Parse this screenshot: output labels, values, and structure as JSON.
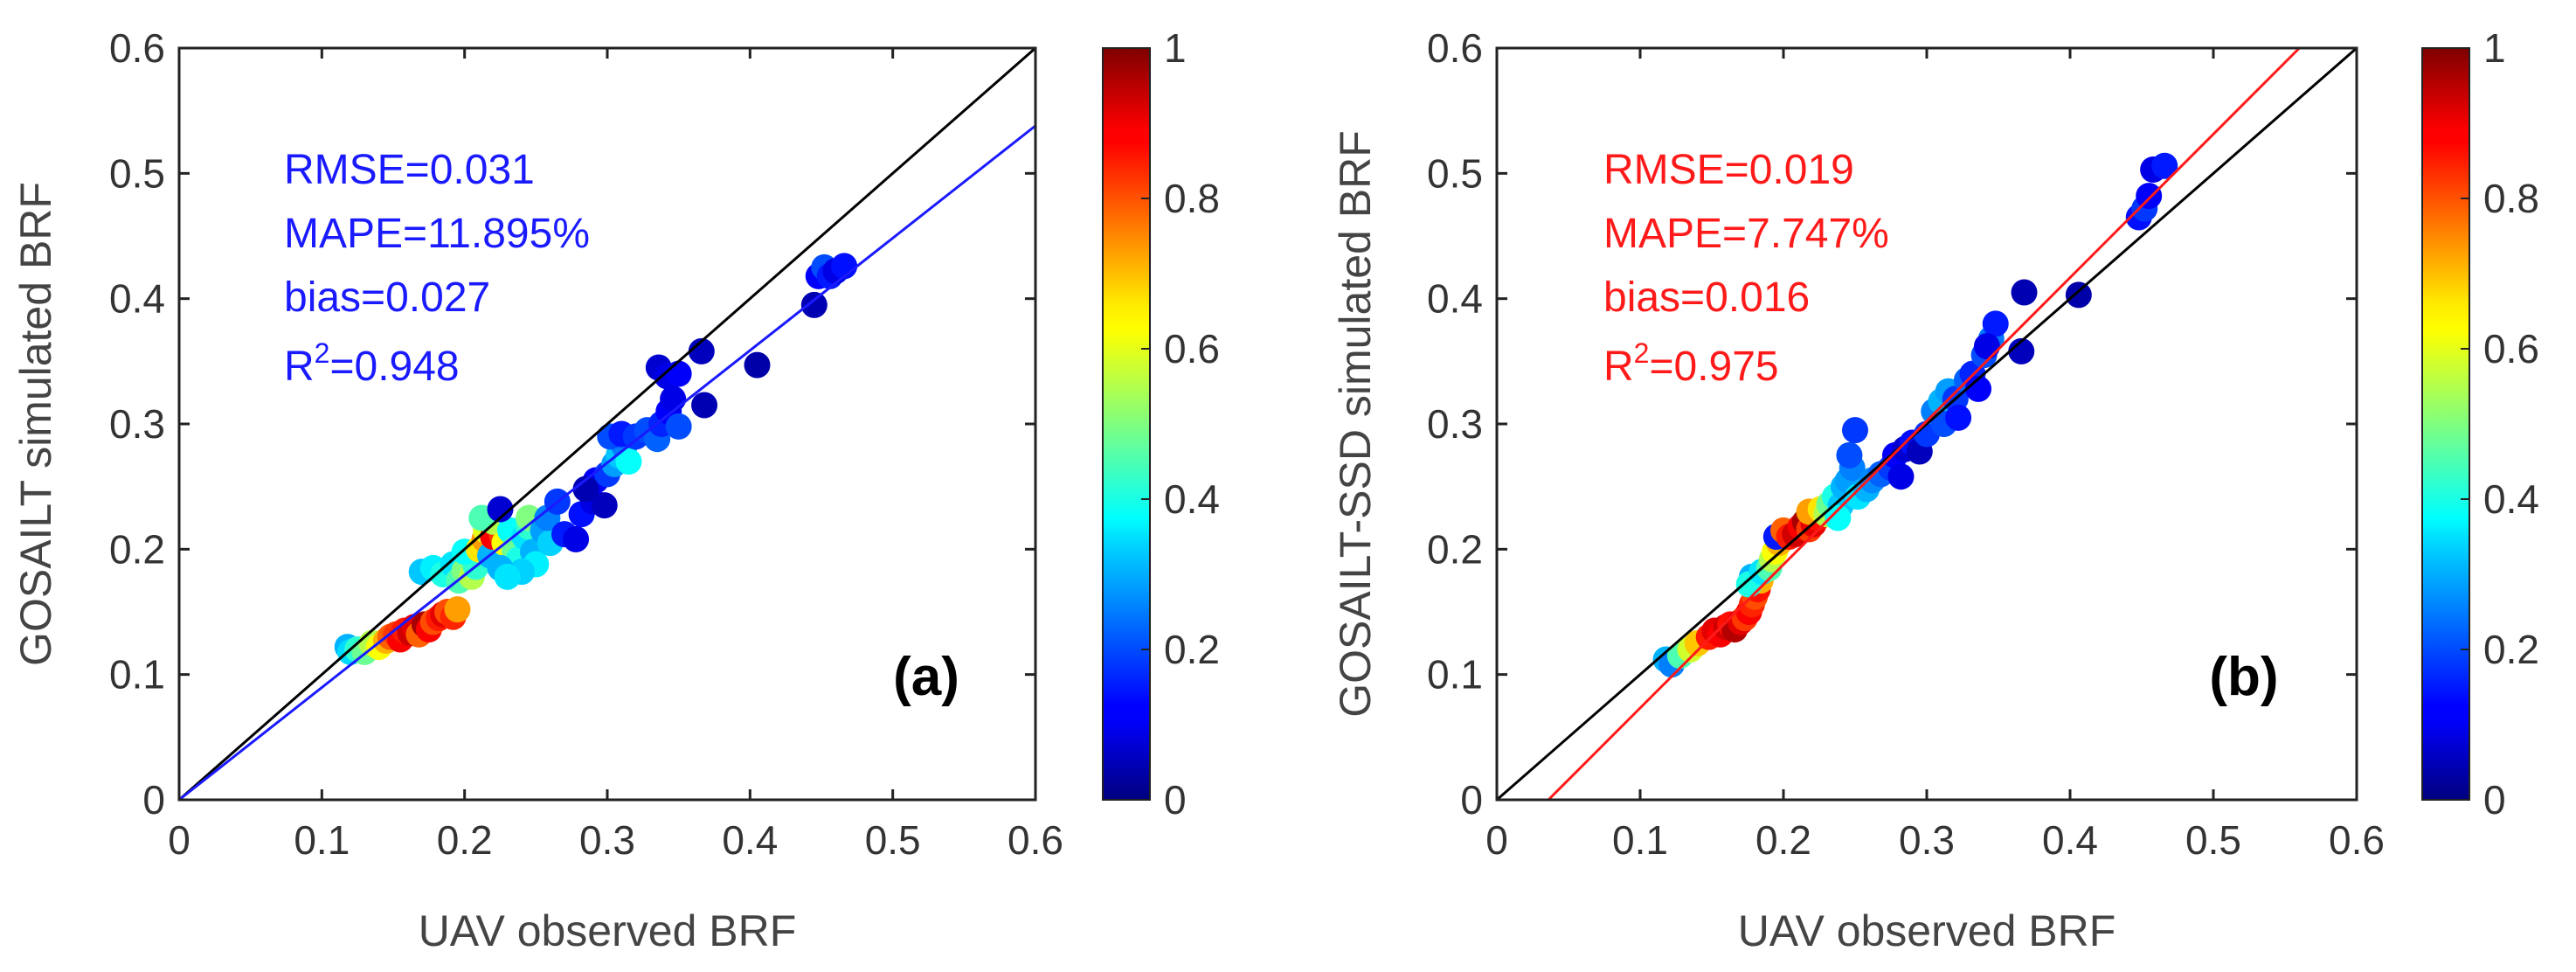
{
  "chart_data": [
    {
      "type": "scatter",
      "panel_label": "(a)",
      "xlabel": "UAV observed BRF",
      "ylabel": "GOSAILT simulated BRF",
      "xlim": [
        0,
        0.6
      ],
      "ylim": [
        0,
        0.6
      ],
      "xticks": [
        "0",
        "0.1",
        "0.2",
        "0.3",
        "0.4",
        "0.5",
        "0.6"
      ],
      "yticks": [
        "0",
        "0.1",
        "0.2",
        "0.3",
        "0.4",
        "0.5",
        "0.6"
      ],
      "stats": [
        "RMSE=0.031",
        "MAPE=11.895%",
        "bias=0.027"
      ],
      "r2_base": "R",
      "r2_sup": "2",
      "r2_value": "=0.948",
      "stats_color": "#1a1aff",
      "one_to_one_line": {
        "x": [
          0,
          0.6
        ],
        "y": [
          0,
          0.6
        ],
        "color": "#000000"
      },
      "fit_line": {
        "x": [
          0,
          0.6
        ],
        "y": [
          0,
          0.538
        ],
        "color": "#1a1aff"
      },
      "colorbar": {
        "min": 0,
        "max": 1,
        "ticks": [
          "0",
          "0.2",
          "0.4",
          "0.6",
          "0.8",
          "1"
        ],
        "colormap": "jet"
      },
      "points": [
        {
          "x": 0.118,
          "y": 0.122,
          "c": 0.3
        },
        {
          "x": 0.12,
          "y": 0.118,
          "c": 0.34
        },
        {
          "x": 0.125,
          "y": 0.12,
          "c": 0.42
        },
        {
          "x": 0.13,
          "y": 0.118,
          "c": 0.48
        },
        {
          "x": 0.135,
          "y": 0.125,
          "c": 0.55
        },
        {
          "x": 0.14,
          "y": 0.122,
          "c": 0.62
        },
        {
          "x": 0.145,
          "y": 0.127,
          "c": 0.7
        },
        {
          "x": 0.148,
          "y": 0.13,
          "c": 0.78
        },
        {
          "x": 0.152,
          "y": 0.132,
          "c": 0.82
        },
        {
          "x": 0.155,
          "y": 0.128,
          "c": 0.88
        },
        {
          "x": 0.158,
          "y": 0.135,
          "c": 0.85
        },
        {
          "x": 0.162,
          "y": 0.133,
          "c": 0.92
        },
        {
          "x": 0.165,
          "y": 0.138,
          "c": 0.9
        },
        {
          "x": 0.168,
          "y": 0.132,
          "c": 0.78
        },
        {
          "x": 0.172,
          "y": 0.14,
          "c": 0.96
        },
        {
          "x": 0.175,
          "y": 0.136,
          "c": 0.88
        },
        {
          "x": 0.178,
          "y": 0.142,
          "c": 0.8
        },
        {
          "x": 0.182,
          "y": 0.145,
          "c": 0.85
        },
        {
          "x": 0.185,
          "y": 0.148,
          "c": 0.9
        },
        {
          "x": 0.188,
          "y": 0.15,
          "c": 0.8
        },
        {
          "x": 0.192,
          "y": 0.146,
          "c": 0.84
        },
        {
          "x": 0.195,
          "y": 0.152,
          "c": 0.72
        },
        {
          "x": 0.17,
          "y": 0.182,
          "c": 0.32
        },
        {
          "x": 0.178,
          "y": 0.185,
          "c": 0.36
        },
        {
          "x": 0.185,
          "y": 0.18,
          "c": 0.4
        },
        {
          "x": 0.192,
          "y": 0.188,
          "c": 0.35
        },
        {
          "x": 0.196,
          "y": 0.175,
          "c": 0.45
        },
        {
          "x": 0.2,
          "y": 0.183,
          "c": 0.5
        },
        {
          "x": 0.205,
          "y": 0.178,
          "c": 0.55
        },
        {
          "x": 0.208,
          "y": 0.186,
          "c": 0.42
        },
        {
          "x": 0.2,
          "y": 0.198,
          "c": 0.38
        },
        {
          "x": 0.21,
          "y": 0.2,
          "c": 0.65
        },
        {
          "x": 0.214,
          "y": 0.208,
          "c": 0.72
        },
        {
          "x": 0.218,
          "y": 0.195,
          "c": 0.3
        },
        {
          "x": 0.215,
          "y": 0.215,
          "c": 0.6
        },
        {
          "x": 0.22,
          "y": 0.21,
          "c": 0.88
        },
        {
          "x": 0.224,
          "y": 0.218,
          "c": 0.95
        },
        {
          "x": 0.226,
          "y": 0.212,
          "c": 0.82
        },
        {
          "x": 0.22,
          "y": 0.222,
          "c": 0.55
        },
        {
          "x": 0.212,
          "y": 0.225,
          "c": 0.45
        },
        {
          "x": 0.228,
          "y": 0.205,
          "c": 0.62
        },
        {
          "x": 0.232,
          "y": 0.215,
          "c": 0.38
        },
        {
          "x": 0.235,
          "y": 0.2,
          "c": 0.48
        },
        {
          "x": 0.238,
          "y": 0.192,
          "c": 0.4
        },
        {
          "x": 0.242,
          "y": 0.21,
          "c": 0.35
        },
        {
          "x": 0.245,
          "y": 0.218,
          "c": 0.42
        },
        {
          "x": 0.248,
          "y": 0.198,
          "c": 0.3
        },
        {
          "x": 0.25,
          "y": 0.188,
          "c": 0.36
        },
        {
          "x": 0.245,
          "y": 0.225,
          "c": 0.5
        },
        {
          "x": 0.24,
          "y": 0.182,
          "c": 0.33
        },
        {
          "x": 0.225,
          "y": 0.185,
          "c": 0.3
        },
        {
          "x": 0.23,
          "y": 0.178,
          "c": 0.35
        },
        {
          "x": 0.225,
          "y": 0.232,
          "c": 0.08
        },
        {
          "x": 0.255,
          "y": 0.215,
          "c": 0.28
        },
        {
          "x": 0.26,
          "y": 0.205,
          "c": 0.33
        },
        {
          "x": 0.258,
          "y": 0.225,
          "c": 0.25
        },
        {
          "x": 0.265,
          "y": 0.238,
          "c": 0.18
        },
        {
          "x": 0.27,
          "y": 0.212,
          "c": 0.15
        },
        {
          "x": 0.278,
          "y": 0.208,
          "c": 0.1
        },
        {
          "x": 0.282,
          "y": 0.228,
          "c": 0.14
        },
        {
          "x": 0.29,
          "y": 0.238,
          "c": 0.1
        },
        {
          "x": 0.292,
          "y": 0.255,
          "c": 0.12
        },
        {
          "x": 0.285,
          "y": 0.248,
          "c": 0.05
        },
        {
          "x": 0.298,
          "y": 0.235,
          "c": 0.06
        },
        {
          "x": 0.3,
          "y": 0.26,
          "c": 0.18
        },
        {
          "x": 0.305,
          "y": 0.268,
          "c": 0.28
        },
        {
          "x": 0.308,
          "y": 0.275,
          "c": 0.32
        },
        {
          "x": 0.312,
          "y": 0.282,
          "c": 0.25
        },
        {
          "x": 0.315,
          "y": 0.27,
          "c": 0.38
        },
        {
          "x": 0.302,
          "y": 0.29,
          "c": 0.2
        },
        {
          "x": 0.31,
          "y": 0.292,
          "c": 0.15
        },
        {
          "x": 0.32,
          "y": 0.29,
          "c": 0.18
        },
        {
          "x": 0.328,
          "y": 0.295,
          "c": 0.2
        },
        {
          "x": 0.335,
          "y": 0.288,
          "c": 0.22
        },
        {
          "x": 0.338,
          "y": 0.3,
          "c": 0.16
        },
        {
          "x": 0.343,
          "y": 0.31,
          "c": 0.12
        },
        {
          "x": 0.346,
          "y": 0.32,
          "c": 0.1
        },
        {
          "x": 0.35,
          "y": 0.298,
          "c": 0.2
        },
        {
          "x": 0.336,
          "y": 0.345,
          "c": 0.08
        },
        {
          "x": 0.342,
          "y": 0.338,
          "c": 0.1
        },
        {
          "x": 0.35,
          "y": 0.34,
          "c": 0.12
        },
        {
          "x": 0.366,
          "y": 0.358,
          "c": 0.06
        },
        {
          "x": 0.368,
          "y": 0.315,
          "c": 0.05
        },
        {
          "x": 0.405,
          "y": 0.347,
          "c": 0.04
        },
        {
          "x": 0.445,
          "y": 0.395,
          "c": 0.05
        },
        {
          "x": 0.448,
          "y": 0.418,
          "c": 0.12
        },
        {
          "x": 0.452,
          "y": 0.425,
          "c": 0.2
        },
        {
          "x": 0.456,
          "y": 0.418,
          "c": 0.15
        },
        {
          "x": 0.46,
          "y": 0.422,
          "c": 0.1
        },
        {
          "x": 0.466,
          "y": 0.426,
          "c": 0.14
        }
      ]
    },
    {
      "type": "scatter",
      "panel_label": "(b)",
      "xlabel": "UAV observed BRF",
      "ylabel": "GOSAILT-SSD simulated BRF",
      "xlim": [
        0,
        0.6
      ],
      "ylim": [
        0,
        0.6
      ],
      "xticks": [
        "0",
        "0.1",
        "0.2",
        "0.3",
        "0.4",
        "0.5",
        "0.6"
      ],
      "yticks": [
        "0",
        "0.1",
        "0.2",
        "0.3",
        "0.4",
        "0.5",
        "0.6"
      ],
      "stats": [
        "RMSE=0.019",
        "MAPE=7.747%",
        "bias=0.016"
      ],
      "r2_base": "R",
      "r2_sup": "2",
      "r2_value": "=0.975",
      "stats_color": "#ff1a1a",
      "one_to_one_line": {
        "x": [
          0,
          0.6
        ],
        "y": [
          0,
          0.6
        ],
        "color": "#000000"
      },
      "fit_line": {
        "x": [
          0.036,
          0.56
        ],
        "y": [
          0,
          0.6
        ],
        "color": "#ff1a1a"
      },
      "colorbar": {
        "min": 0,
        "max": 1,
        "ticks": [
          "0",
          "0.2",
          "0.4",
          "0.6",
          "0.8",
          "1"
        ],
        "colormap": "jet"
      },
      "points": [
        {
          "x": 0.118,
          "y": 0.112,
          "c": 0.3
        },
        {
          "x": 0.122,
          "y": 0.108,
          "c": 0.25
        },
        {
          "x": 0.128,
          "y": 0.115,
          "c": 0.45
        },
        {
          "x": 0.135,
          "y": 0.12,
          "c": 0.58
        },
        {
          "x": 0.14,
          "y": 0.125,
          "c": 0.68
        },
        {
          "x": 0.148,
          "y": 0.13,
          "c": 0.85
        },
        {
          "x": 0.152,
          "y": 0.135,
          "c": 0.9
        },
        {
          "x": 0.156,
          "y": 0.132,
          "c": 0.88
        },
        {
          "x": 0.16,
          "y": 0.138,
          "c": 0.92
        },
        {
          "x": 0.163,
          "y": 0.14,
          "c": 0.86
        },
        {
          "x": 0.166,
          "y": 0.136,
          "c": 0.95
        },
        {
          "x": 0.17,
          "y": 0.142,
          "c": 0.9
        },
        {
          "x": 0.173,
          "y": 0.145,
          "c": 0.82
        },
        {
          "x": 0.176,
          "y": 0.15,
          "c": 0.88
        },
        {
          "x": 0.178,
          "y": 0.156,
          "c": 0.84
        },
        {
          "x": 0.18,
          "y": 0.162,
          "c": 0.8
        },
        {
          "x": 0.182,
          "y": 0.168,
          "c": 0.86
        },
        {
          "x": 0.184,
          "y": 0.175,
          "c": 0.7
        },
        {
          "x": 0.178,
          "y": 0.178,
          "c": 0.3
        },
        {
          "x": 0.176,
          "y": 0.172,
          "c": 0.4
        },
        {
          "x": 0.185,
          "y": 0.182,
          "c": 0.35
        },
        {
          "x": 0.19,
          "y": 0.185,
          "c": 0.45
        },
        {
          "x": 0.192,
          "y": 0.192,
          "c": 0.55
        },
        {
          "x": 0.194,
          "y": 0.198,
          "c": 0.62
        },
        {
          "x": 0.197,
          "y": 0.205,
          "c": 0.7
        },
        {
          "x": 0.195,
          "y": 0.21,
          "c": 0.15
        },
        {
          "x": 0.2,
          "y": 0.215,
          "c": 0.78
        },
        {
          "x": 0.204,
          "y": 0.21,
          "c": 0.85
        },
        {
          "x": 0.208,
          "y": 0.212,
          "c": 0.92
        },
        {
          "x": 0.212,
          "y": 0.218,
          "c": 0.88
        },
        {
          "x": 0.215,
          "y": 0.222,
          "c": 0.96
        },
        {
          "x": 0.218,
          "y": 0.216,
          "c": 0.82
        },
        {
          "x": 0.221,
          "y": 0.22,
          "c": 0.9
        },
        {
          "x": 0.224,
          "y": 0.225,
          "c": 0.86
        },
        {
          "x": 0.218,
          "y": 0.23,
          "c": 0.72
        },
        {
          "x": 0.226,
          "y": 0.232,
          "c": 0.65
        },
        {
          "x": 0.23,
          "y": 0.228,
          "c": 0.55
        },
        {
          "x": 0.232,
          "y": 0.236,
          "c": 0.48
        },
        {
          "x": 0.236,
          "y": 0.242,
          "c": 0.4
        },
        {
          "x": 0.24,
          "y": 0.235,
          "c": 0.32
        },
        {
          "x": 0.238,
          "y": 0.225,
          "c": 0.38
        },
        {
          "x": 0.242,
          "y": 0.25,
          "c": 0.3
        },
        {
          "x": 0.245,
          "y": 0.255,
          "c": 0.28
        },
        {
          "x": 0.248,
          "y": 0.265,
          "c": 0.25
        },
        {
          "x": 0.246,
          "y": 0.275,
          "c": 0.2
        },
        {
          "x": 0.25,
          "y": 0.295,
          "c": 0.18
        },
        {
          "x": 0.252,
          "y": 0.242,
          "c": 0.35
        },
        {
          "x": 0.258,
          "y": 0.248,
          "c": 0.3
        },
        {
          "x": 0.262,
          "y": 0.255,
          "c": 0.26
        },
        {
          "x": 0.268,
          "y": 0.26,
          "c": 0.22
        },
        {
          "x": 0.275,
          "y": 0.265,
          "c": 0.18
        },
        {
          "x": 0.278,
          "y": 0.275,
          "c": 0.12
        },
        {
          "x": 0.282,
          "y": 0.258,
          "c": 0.1
        },
        {
          "x": 0.285,
          "y": 0.28,
          "c": 0.08
        },
        {
          "x": 0.29,
          "y": 0.285,
          "c": 0.14
        },
        {
          "x": 0.295,
          "y": 0.278,
          "c": 0.06
        },
        {
          "x": 0.3,
          "y": 0.292,
          "c": 0.18
        },
        {
          "x": 0.305,
          "y": 0.31,
          "c": 0.25
        },
        {
          "x": 0.31,
          "y": 0.318,
          "c": 0.3
        },
        {
          "x": 0.312,
          "y": 0.3,
          "c": 0.2
        },
        {
          "x": 0.315,
          "y": 0.326,
          "c": 0.28
        },
        {
          "x": 0.32,
          "y": 0.32,
          "c": 0.18
        },
        {
          "x": 0.322,
          "y": 0.305,
          "c": 0.14
        },
        {
          "x": 0.328,
          "y": 0.335,
          "c": 0.22
        },
        {
          "x": 0.332,
          "y": 0.34,
          "c": 0.16
        },
        {
          "x": 0.336,
          "y": 0.328,
          "c": 0.12
        },
        {
          "x": 0.34,
          "y": 0.355,
          "c": 0.2
        },
        {
          "x": 0.345,
          "y": 0.368,
          "c": 0.24
        },
        {
          "x": 0.348,
          "y": 0.38,
          "c": 0.15
        },
        {
          "x": 0.342,
          "y": 0.362,
          "c": 0.1
        },
        {
          "x": 0.366,
          "y": 0.358,
          "c": 0.06
        },
        {
          "x": 0.368,
          "y": 0.405,
          "c": 0.05
        },
        {
          "x": 0.406,
          "y": 0.403,
          "c": 0.04
        },
        {
          "x": 0.448,
          "y": 0.465,
          "c": 0.14
        },
        {
          "x": 0.452,
          "y": 0.472,
          "c": 0.18
        },
        {
          "x": 0.455,
          "y": 0.482,
          "c": 0.12
        },
        {
          "x": 0.458,
          "y": 0.503,
          "c": 0.1
        },
        {
          "x": 0.466,
          "y": 0.506,
          "c": 0.15
        }
      ]
    }
  ]
}
